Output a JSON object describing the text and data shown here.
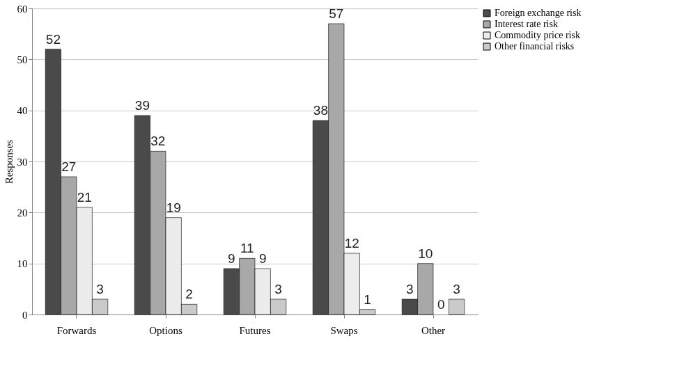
{
  "chart_data": {
    "type": "bar",
    "ylabel": "Responses",
    "categories": [
      "Forwards",
      "Options",
      "Futures",
      "Swaps",
      "Other"
    ],
    "series": [
      {
        "name": "Foreign exchange risk",
        "color": "#4a4a4a",
        "values": [
          52,
          39,
          9,
          38,
          3
        ]
      },
      {
        "name": "Interest rate risk",
        "color": "#a8a8a8",
        "values": [
          27,
          32,
          11,
          57,
          10
        ]
      },
      {
        "name": "Commodity price risk",
        "color": "#ececec",
        "values": [
          21,
          19,
          9,
          12,
          0
        ]
      },
      {
        "name": "Other financial risks",
        "color": "#cacaca",
        "values": [
          3,
          2,
          3,
          1,
          3
        ]
      }
    ],
    "ylim": [
      0,
      60
    ],
    "yticks": [
      0,
      10,
      20,
      30,
      40,
      50,
      60
    ],
    "grid": "y",
    "legend": "right",
    "data_labels": true
  }
}
